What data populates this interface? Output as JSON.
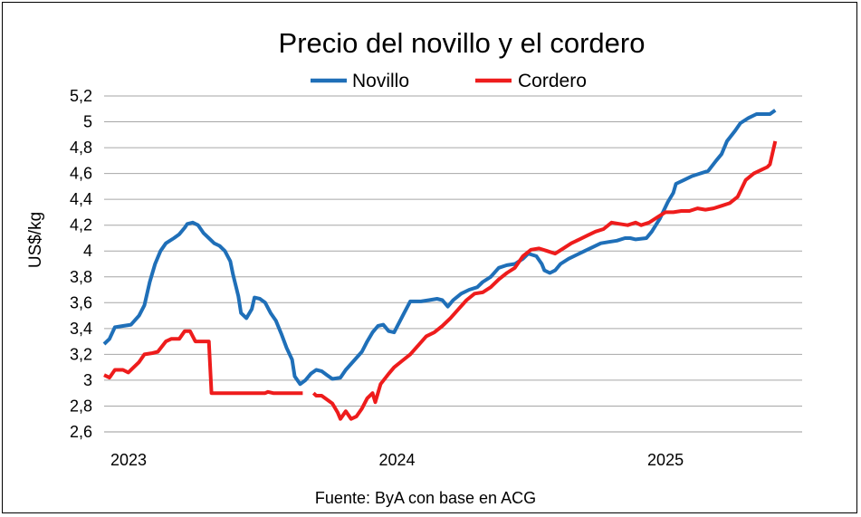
{
  "chart_data": {
    "type": "line",
    "title": "Precio del novillo y el cordero",
    "ylabel": "US$/kg",
    "xlabel": "",
    "ylim": [
      2.6,
      5.2
    ],
    "yticks": [
      2.6,
      2.8,
      3.0,
      3.2,
      3.4,
      3.6,
      3.8,
      4.0,
      4.2,
      4.4,
      4.6,
      4.8,
      5.0,
      5.2
    ],
    "ytick_labels": [
      "2,6",
      "2,8",
      "3",
      "3,2",
      "3,4",
      "3,6",
      "3,8",
      "4",
      "4,2",
      "4,4",
      "4,6",
      "4,8",
      "5",
      "5,2"
    ],
    "xlim": [
      2023.0,
      2025.6
    ],
    "xticks": [
      2023.0,
      2024.0,
      2025.0
    ],
    "xtick_labels": [
      "2023",
      "2024",
      "2025"
    ],
    "grid": "horizontal",
    "legend": "top",
    "series": [
      {
        "name": "Novillo",
        "color": "#1F6FB8",
        "points": [
          [
            2023.0,
            3.28
          ],
          [
            2023.02,
            3.32
          ],
          [
            2023.04,
            3.41
          ],
          [
            2023.07,
            3.42
          ],
          [
            2023.1,
            3.43
          ],
          [
            2023.13,
            3.5
          ],
          [
            2023.15,
            3.58
          ],
          [
            2023.17,
            3.76
          ],
          [
            2023.19,
            3.9
          ],
          [
            2023.21,
            4.0
          ],
          [
            2023.23,
            4.06
          ],
          [
            2023.26,
            4.1
          ],
          [
            2023.28,
            4.13
          ],
          [
            2023.3,
            4.18
          ],
          [
            2023.31,
            4.21
          ],
          [
            2023.33,
            4.22
          ],
          [
            2023.35,
            4.2
          ],
          [
            2023.37,
            4.14
          ],
          [
            2023.39,
            4.1
          ],
          [
            2023.41,
            4.06
          ],
          [
            2023.43,
            4.04
          ],
          [
            2023.45,
            4.0
          ],
          [
            2023.47,
            3.92
          ],
          [
            2023.48,
            3.82
          ],
          [
            2023.5,
            3.65
          ],
          [
            2023.51,
            3.52
          ],
          [
            2023.53,
            3.48
          ],
          [
            2023.55,
            3.55
          ],
          [
            2023.56,
            3.64
          ],
          [
            2023.58,
            3.63
          ],
          [
            2023.6,
            3.6
          ],
          [
            2023.62,
            3.52
          ],
          [
            2023.64,
            3.46
          ],
          [
            2023.66,
            3.36
          ],
          [
            2023.68,
            3.25
          ],
          [
            2023.7,
            3.16
          ],
          [
            2023.71,
            3.03
          ],
          [
            2023.73,
            2.97
          ],
          [
            2023.75,
            3.0
          ],
          [
            2023.77,
            3.05
          ],
          [
            2023.79,
            3.08
          ],
          [
            2023.81,
            3.07
          ],
          [
            2023.83,
            3.04
          ],
          [
            2023.85,
            3.01
          ],
          [
            2023.88,
            3.02
          ],
          [
            2023.9,
            3.08
          ],
          [
            2023.93,
            3.15
          ],
          [
            2023.96,
            3.22
          ],
          [
            2023.98,
            3.3
          ],
          [
            2024.0,
            3.37
          ],
          [
            2024.02,
            3.42
          ],
          [
            2024.04,
            3.43
          ],
          [
            2024.06,
            3.38
          ],
          [
            2024.08,
            3.37
          ],
          [
            2024.1,
            3.45
          ],
          [
            2024.12,
            3.53
          ],
          [
            2024.14,
            3.61
          ],
          [
            2024.18,
            3.61
          ],
          [
            2024.21,
            3.62
          ],
          [
            2024.24,
            3.63
          ],
          [
            2024.26,
            3.62
          ],
          [
            2024.28,
            3.57
          ],
          [
            2024.3,
            3.62
          ],
          [
            2024.33,
            3.67
          ],
          [
            2024.36,
            3.7
          ],
          [
            2024.39,
            3.72
          ],
          [
            2024.41,
            3.76
          ],
          [
            2024.44,
            3.8
          ],
          [
            2024.47,
            3.87
          ],
          [
            2024.5,
            3.89
          ],
          [
            2024.53,
            3.9
          ],
          [
            2024.56,
            3.94
          ],
          [
            2024.58,
            3.98
          ],
          [
            2024.61,
            3.96
          ],
          [
            2024.63,
            3.9
          ],
          [
            2024.64,
            3.85
          ],
          [
            2024.66,
            3.83
          ],
          [
            2024.68,
            3.85
          ],
          [
            2024.7,
            3.9
          ],
          [
            2024.73,
            3.94
          ],
          [
            2024.76,
            3.97
          ],
          [
            2024.79,
            4.0
          ],
          [
            2024.82,
            4.03
          ],
          [
            2024.85,
            4.06
          ],
          [
            2024.88,
            4.07
          ],
          [
            2024.91,
            4.08
          ],
          [
            2024.94,
            4.1
          ],
          [
            2024.96,
            4.1
          ],
          [
            2024.98,
            4.09
          ],
          [
            2025.02,
            4.1
          ],
          [
            2025.04,
            4.15
          ],
          [
            2025.07,
            4.25
          ],
          [
            2025.1,
            4.38
          ],
          [
            2025.12,
            4.45
          ],
          [
            2025.13,
            4.52
          ],
          [
            2025.16,
            4.55
          ],
          [
            2025.19,
            4.58
          ],
          [
            2025.22,
            4.6
          ],
          [
            2025.25,
            4.62
          ],
          [
            2025.28,
            4.7
          ],
          [
            2025.3,
            4.75
          ],
          [
            2025.32,
            4.85
          ],
          [
            2025.35,
            4.93
          ],
          [
            2025.37,
            4.99
          ],
          [
            2025.4,
            5.03
          ],
          [
            2025.43,
            5.06
          ],
          [
            2025.46,
            5.06
          ],
          [
            2025.48,
            5.06
          ],
          [
            2025.5,
            5.09
          ]
        ]
      },
      {
        "name": "Cordero",
        "color": "#EE1C1C",
        "points": [
          [
            2023.0,
            3.04
          ],
          [
            2023.02,
            3.02
          ],
          [
            2023.04,
            3.08
          ],
          [
            2023.07,
            3.08
          ],
          [
            2023.09,
            3.06
          ],
          [
            2023.11,
            3.1
          ],
          [
            2023.13,
            3.14
          ],
          [
            2023.15,
            3.2
          ],
          [
            2023.18,
            3.21
          ],
          [
            2023.2,
            3.22
          ],
          [
            2023.23,
            3.3
          ],
          [
            2023.25,
            3.32
          ],
          [
            2023.28,
            3.32
          ],
          [
            2023.3,
            3.38
          ],
          [
            2023.32,
            3.38
          ],
          [
            2023.34,
            3.3
          ],
          [
            2023.37,
            3.3
          ],
          [
            2023.39,
            3.3
          ],
          [
            2023.4,
            2.9
          ],
          [
            2023.45,
            2.9
          ],
          [
            2023.5,
            2.9
          ],
          [
            2023.55,
            2.9
          ],
          [
            2023.6,
            2.9
          ],
          [
            2023.61,
            2.91
          ],
          [
            2023.63,
            2.9
          ],
          [
            2023.68,
            2.9
          ],
          [
            2023.74,
            2.9
          ],
          null,
          [
            2023.78,
            2.9
          ],
          [
            2023.79,
            2.88
          ],
          [
            2023.81,
            2.88
          ],
          [
            2023.83,
            2.85
          ],
          [
            2023.85,
            2.82
          ],
          [
            2023.87,
            2.75
          ],
          [
            2023.88,
            2.7
          ],
          [
            2023.9,
            2.76
          ],
          [
            2023.92,
            2.7
          ],
          [
            2023.94,
            2.72
          ],
          [
            2023.96,
            2.78
          ],
          [
            2023.98,
            2.86
          ],
          [
            2024.0,
            2.9
          ],
          [
            2024.01,
            2.83
          ],
          [
            2024.03,
            2.97
          ],
          [
            2024.06,
            3.05
          ],
          [
            2024.08,
            3.1
          ],
          [
            2024.11,
            3.15
          ],
          [
            2024.14,
            3.2
          ],
          [
            2024.17,
            3.27
          ],
          [
            2024.2,
            3.34
          ],
          [
            2024.23,
            3.37
          ],
          [
            2024.26,
            3.42
          ],
          [
            2024.29,
            3.48
          ],
          [
            2024.32,
            3.55
          ],
          [
            2024.35,
            3.62
          ],
          [
            2024.38,
            3.67
          ],
          [
            2024.41,
            3.68
          ],
          [
            2024.44,
            3.72
          ],
          [
            2024.47,
            3.78
          ],
          [
            2024.5,
            3.83
          ],
          [
            2024.53,
            3.87
          ],
          [
            2024.56,
            3.96
          ],
          [
            2024.59,
            4.01
          ],
          [
            2024.62,
            4.02
          ],
          [
            2024.65,
            4.0
          ],
          [
            2024.68,
            3.98
          ],
          [
            2024.71,
            4.02
          ],
          [
            2024.74,
            4.06
          ],
          [
            2024.77,
            4.09
          ],
          [
            2024.8,
            4.12
          ],
          [
            2024.83,
            4.15
          ],
          [
            2024.86,
            4.17
          ],
          [
            2024.89,
            4.22
          ],
          [
            2024.92,
            4.21
          ],
          [
            2024.95,
            4.2
          ],
          [
            2024.98,
            4.22
          ],
          [
            2025.0,
            4.2
          ],
          [
            2025.03,
            4.22
          ],
          [
            2025.06,
            4.26
          ],
          [
            2025.09,
            4.3
          ],
          [
            2025.12,
            4.3
          ],
          [
            2025.15,
            4.31
          ],
          [
            2025.18,
            4.31
          ],
          [
            2025.21,
            4.33
          ],
          [
            2025.24,
            4.32
          ],
          [
            2025.27,
            4.33
          ],
          [
            2025.3,
            4.35
          ],
          [
            2025.33,
            4.37
          ],
          [
            2025.36,
            4.42
          ],
          [
            2025.39,
            4.55
          ],
          [
            2025.42,
            4.6
          ],
          [
            2025.45,
            4.63
          ],
          [
            2025.47,
            4.65
          ],
          [
            2025.48,
            4.67
          ],
          [
            2025.5,
            4.85
          ]
        ]
      }
    ],
    "source": "Fuente: ByA con base en ACG"
  }
}
